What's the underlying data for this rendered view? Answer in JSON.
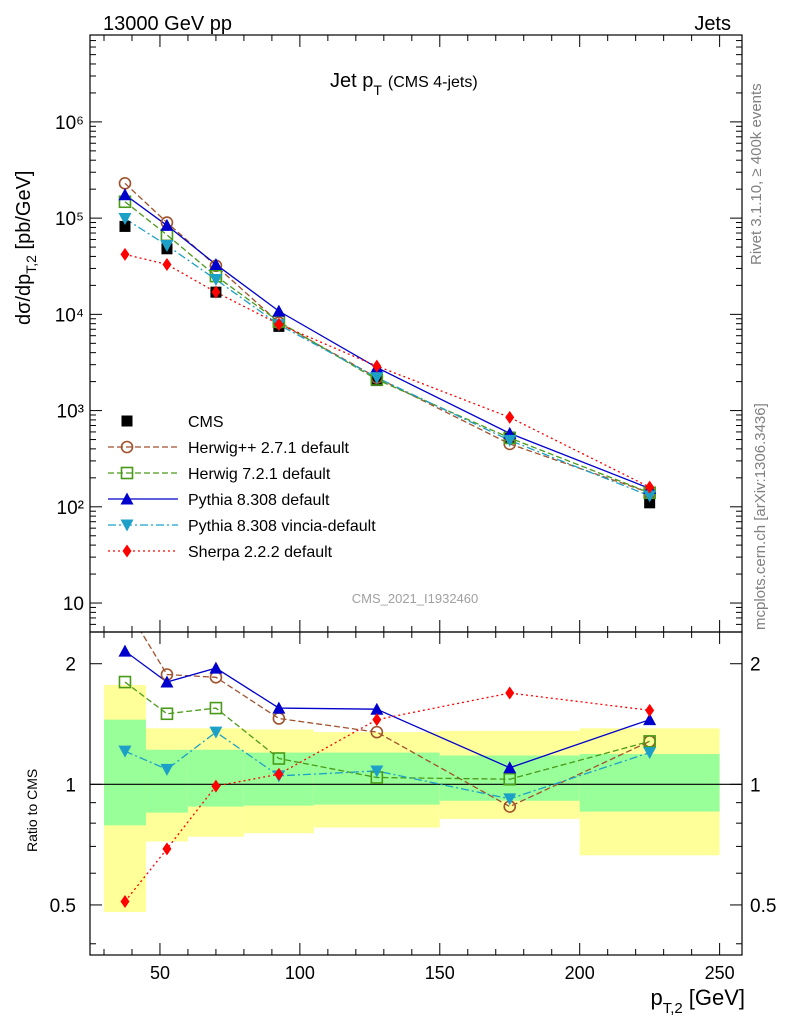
{
  "header": {
    "left": "13000 GeV pp",
    "right": "Jets"
  },
  "side_text": {
    "rivet": "Rivet 3.1.10, ≥ 400k events",
    "mcplots": "mcplots.cern.ch [arXiv:1306.3436]"
  },
  "analysis_id": "CMS_2021_I1932460",
  "chart_data": [
    {
      "type": "line",
      "title": "Jet p_T (CMS 4-jets)",
      "title_main": "Jet p",
      "title_sub": "T",
      "title_note": "(CMS 4-jets)",
      "ylabel": "dσ/dp_T,2 [pb/GeV]",
      "y_scale": "log",
      "ylim": [
        5,
        8000000
      ],
      "xlim": [
        25,
        258
      ],
      "y_tick_labels": [
        "10",
        "10²",
        "10³",
        "10⁴",
        "10⁵",
        "10⁶"
      ],
      "legend_position": "lower-left",
      "x": [
        37.5,
        52.5,
        70,
        92.5,
        127.5,
        175,
        225
      ],
      "bin_edges": [
        30,
        45,
        60,
        80,
        105,
        150,
        200,
        250
      ],
      "series": [
        {
          "name": "CMS",
          "color": "#000000",
          "marker": "square",
          "line": "none",
          "values": [
            82000,
            48000,
            17000,
            7500,
            2050,
            530,
            110
          ]
        },
        {
          "name": "Herwig++ 2.7.1 default",
          "color": "#a0522d",
          "marker": "open-circle",
          "line": "dashed",
          "values": [
            230000,
            90000,
            32000,
            8200,
            2200,
            450,
            140
          ]
        },
        {
          "name": "Herwig 7.2.1 default",
          "color": "#4a9a1a",
          "marker": "open-square",
          "line": "dashed",
          "values": [
            148000,
            67000,
            25000,
            8400,
            2100,
            520,
            140
          ]
        },
        {
          "name": "Pythia 8.308 default",
          "color": "#0000cc",
          "marker": "triangle-up",
          "line": "solid",
          "values": [
            175000,
            84000,
            33000,
            10800,
            2800,
            580,
            155
          ]
        },
        {
          "name": "Pythia 8.308 vincia-default",
          "color": "#1ca0c8",
          "marker": "triangle-down",
          "line": "dashdot",
          "values": [
            99000,
            52000,
            23000,
            7800,
            2200,
            490,
            130
          ]
        },
        {
          "name": "Sherpa 2.2.2 default",
          "color": "#ff0000",
          "marker": "diamond",
          "line": "dotted",
          "values": [
            42000,
            33000,
            17000,
            7900,
            2900,
            850,
            160
          ]
        }
      ]
    },
    {
      "type": "line",
      "ylabel": "Ratio to CMS",
      "xlabel": "p_T,2 [GeV]",
      "xlabel_main": "p",
      "xlabel_sub": "T,2",
      "xlabel_unit": "[GeV]",
      "y_scale": "log",
      "ylim": [
        0.375,
        2.4
      ],
      "xlim": [
        25,
        258
      ],
      "x_ticks": [
        50,
        100,
        150,
        200,
        250
      ],
      "y_ticks": [
        0.5,
        1,
        2
      ],
      "bands": {
        "bin_edges": [
          30,
          45,
          60,
          80,
          105,
          150,
          200,
          250
        ],
        "yellow_low": [
          0.48,
          0.72,
          0.74,
          0.755,
          0.78,
          0.82,
          0.665
        ],
        "yellow_high": [
          1.77,
          1.38,
          1.38,
          1.37,
          1.35,
          1.36,
          1.38
        ],
        "green_low": [
          0.79,
          0.85,
          0.88,
          0.885,
          0.89,
          0.91,
          0.855
        ],
        "green_high": [
          1.45,
          1.22,
          1.22,
          1.2,
          1.2,
          1.18,
          1.19
        ]
      },
      "series": [
        {
          "name": "Herwig++ 2.7.1 default",
          "color": "#a0522d",
          "marker": "open-circle",
          "line": "dashed",
          "values": [
            2.8,
            1.88,
            1.85,
            1.46,
            1.35,
            0.88,
            1.28
          ]
        },
        {
          "name": "Herwig 7.2.1 default",
          "color": "#4a9a1a",
          "marker": "open-square",
          "line": "dashed",
          "values": [
            1.8,
            1.5,
            1.55,
            1.16,
            1.04,
            1.03,
            1.28
          ]
        },
        {
          "name": "Pythia 8.308 default",
          "color": "#0000cc",
          "marker": "triangle-up",
          "line": "solid",
          "values": [
            2.15,
            1.8,
            1.95,
            1.55,
            1.54,
            1.1,
            1.45
          ]
        },
        {
          "name": "Pythia 8.308 vincia-default",
          "color": "#1ca0c8",
          "marker": "triangle-down",
          "line": "dashdot",
          "values": [
            1.21,
            1.09,
            1.35,
            1.05,
            1.08,
            0.92,
            1.2
          ]
        },
        {
          "name": "Sherpa 2.2.2 default",
          "color": "#ff0000",
          "marker": "diamond",
          "line": "dotted",
          "values": [
            0.51,
            0.69,
            0.99,
            1.06,
            1.45,
            1.69,
            1.53
          ]
        }
      ]
    }
  ]
}
